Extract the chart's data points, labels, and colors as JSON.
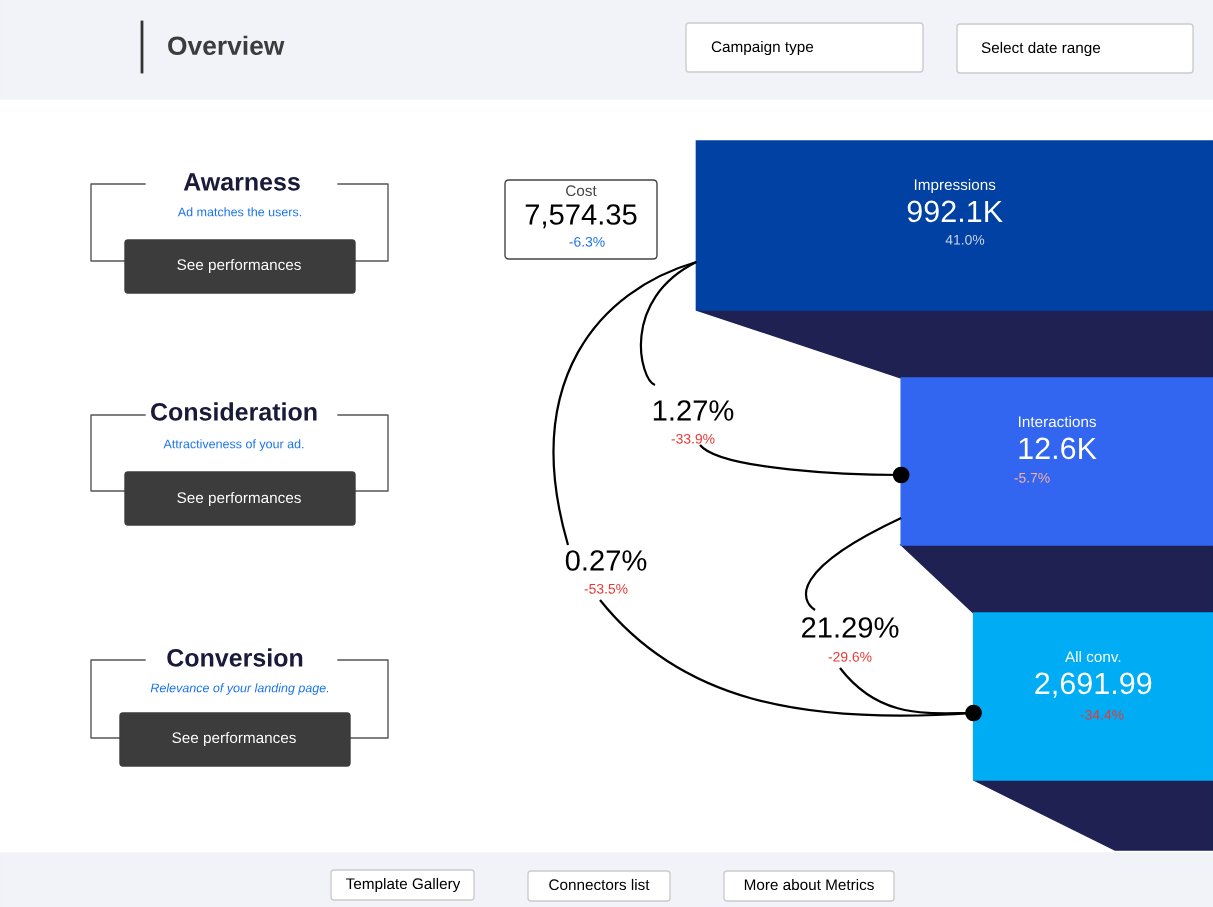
{
  "chart_data": {
    "type": "other",
    "title": "Overview",
    "categories": [
      "Impressions",
      "Interactions",
      "All conv."
    ],
    "values": [
      992100,
      12600,
      2691.99
    ],
    "value_labels": [
      "992.1K",
      "12.6K",
      "2,691.99"
    ],
    "colors": [
      "#0041a3",
      "#3366f0",
      "#00adf5"
    ],
    "annotations": [
      "Awarness",
      "Ad matches the users.",
      "Consideration",
      "Attractiveness of your ad.",
      "Conversion",
      "Relevance of your landing page.",
      "See performances",
      "See performances",
      "See performances",
      "Cost",
      "7,574.35",
      "-6.3%",
      "41.0%",
      "-5.7%",
      "-34.4%",
      "1.27%",
      "-33.9%",
      "0.27%",
      "-53.5%",
      "21.29%",
      "-29.6%",
      "Campaign type",
      "Select date range",
      "Template Gallery",
      "Connectors list",
      "More about Metrics"
    ]
  }
}
